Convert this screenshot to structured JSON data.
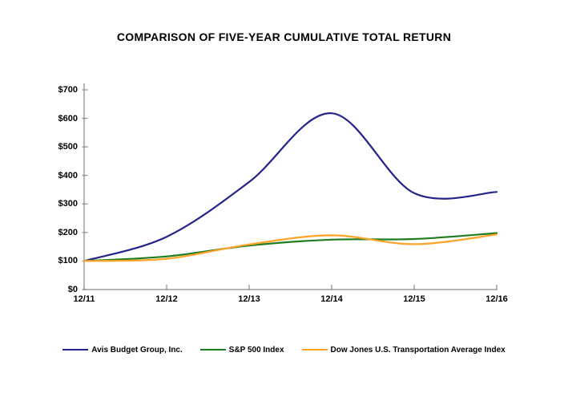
{
  "chart_data": {
    "type": "line",
    "title": "COMPARISON OF FIVE-YEAR CUMULATIVE TOTAL RETURN",
    "categories": [
      "12/11",
      "12/12",
      "12/13",
      "12/14",
      "12/15",
      "12/16"
    ],
    "series": [
      {
        "name": "Avis Budget Group, Inc.",
        "color": "#23238C",
        "values": [
          100,
          185,
          377,
          618,
          338,
          342
        ]
      },
      {
        "name": "S&P 500 Index",
        "color": "#1E7D1E",
        "values": [
          100,
          116,
          154,
          175,
          177,
          198
        ]
      },
      {
        "name": "Dow Jones U.S. Transportation Average Index",
        "color": "#FFA428",
        "values": [
          100,
          108,
          158,
          190,
          159,
          193
        ]
      }
    ],
    "xlabel": "",
    "ylabel": "",
    "ylim": [
      0,
      700
    ],
    "y_ticks": [
      0,
      100,
      200,
      300,
      400,
      500,
      600,
      700
    ],
    "y_tick_labels": [
      "$0",
      "$100",
      "$200",
      "$300",
      "$400",
      "$500",
      "$600",
      "$700"
    ],
    "grid": false,
    "line_smoothing": true,
    "legend_position": "bottom",
    "axis_color": "#8A8A8A",
    "text_color": "#000000",
    "background_color": "#FFFFFF"
  }
}
